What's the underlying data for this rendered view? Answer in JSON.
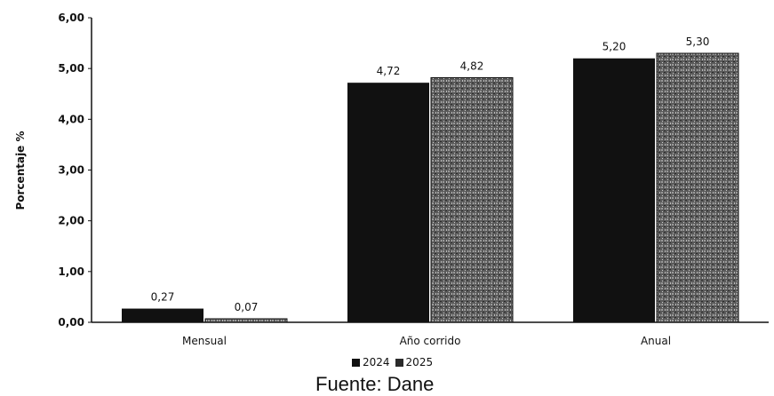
{
  "chart_data": {
    "type": "bar",
    "categories": [
      "Mensual",
      "Año corrido",
      "Anual"
    ],
    "series": [
      {
        "name": "2024",
        "values": [
          0.27,
          4.72,
          5.2
        ],
        "labels": [
          "0,27",
          "4,72",
          "5,20"
        ],
        "color": "#111111"
      },
      {
        "name": "2025",
        "values": [
          0.07,
          4.82,
          5.3
        ],
        "labels": [
          "0,07",
          "4,82",
          "5,30"
        ],
        "color": "#6b6b6b"
      }
    ],
    "ylabel": "Porcentaje %",
    "xlabel": "",
    "ylim": [
      0,
      6
    ],
    "y_ticks": [
      0,
      1,
      2,
      3,
      4,
      5,
      6
    ],
    "y_tick_labels": [
      "0,00",
      "1,00",
      "2,00",
      "3,00",
      "4,00",
      "5,00",
      "6,00"
    ],
    "grid": false,
    "legend_position": "bottom"
  },
  "source": "Fuente: Dane"
}
